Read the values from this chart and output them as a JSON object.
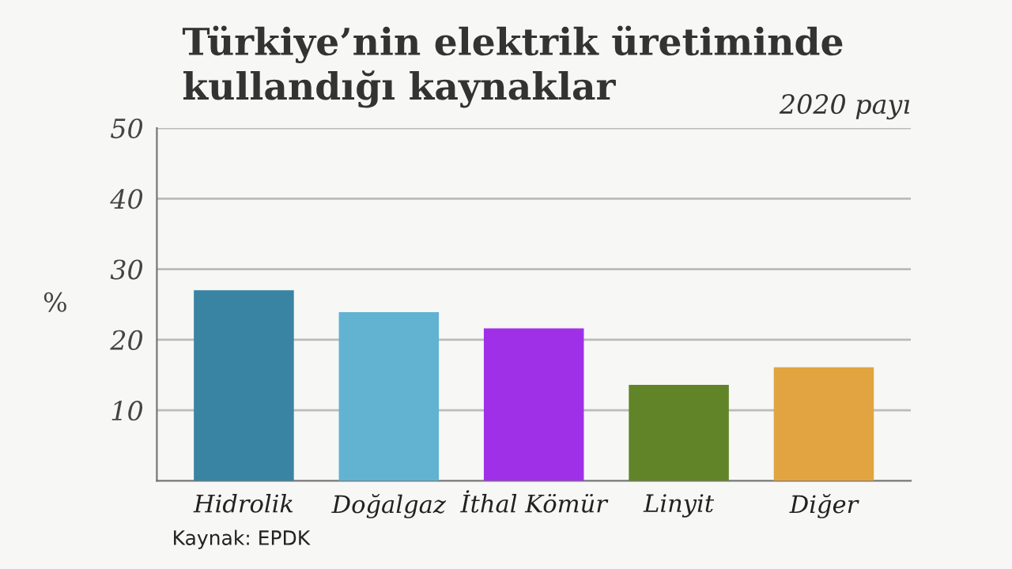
{
  "chart_data": {
    "type": "bar",
    "title": "Türkiye’nin elektrik üretiminde\nkullandığı kaynaklar",
    "subtitle": "2020 payı",
    "ylabel": "%",
    "categories": [
      "Hidrolik",
      "Doğalgaz",
      "İthal Kömür",
      "Linyit",
      "Diğer"
    ],
    "values": [
      27.0,
      23.9,
      21.6,
      13.6,
      16.1
    ],
    "colors": [
      "#3a84a3",
      "#62b2d2",
      "#a030e8",
      "#628428",
      "#e2a440"
    ],
    "ylim": [
      0,
      50
    ],
    "yticks": [
      10,
      20,
      30,
      40,
      50
    ],
    "grid": "y",
    "annotations": [
      "Kaynak: EPDK"
    ]
  }
}
